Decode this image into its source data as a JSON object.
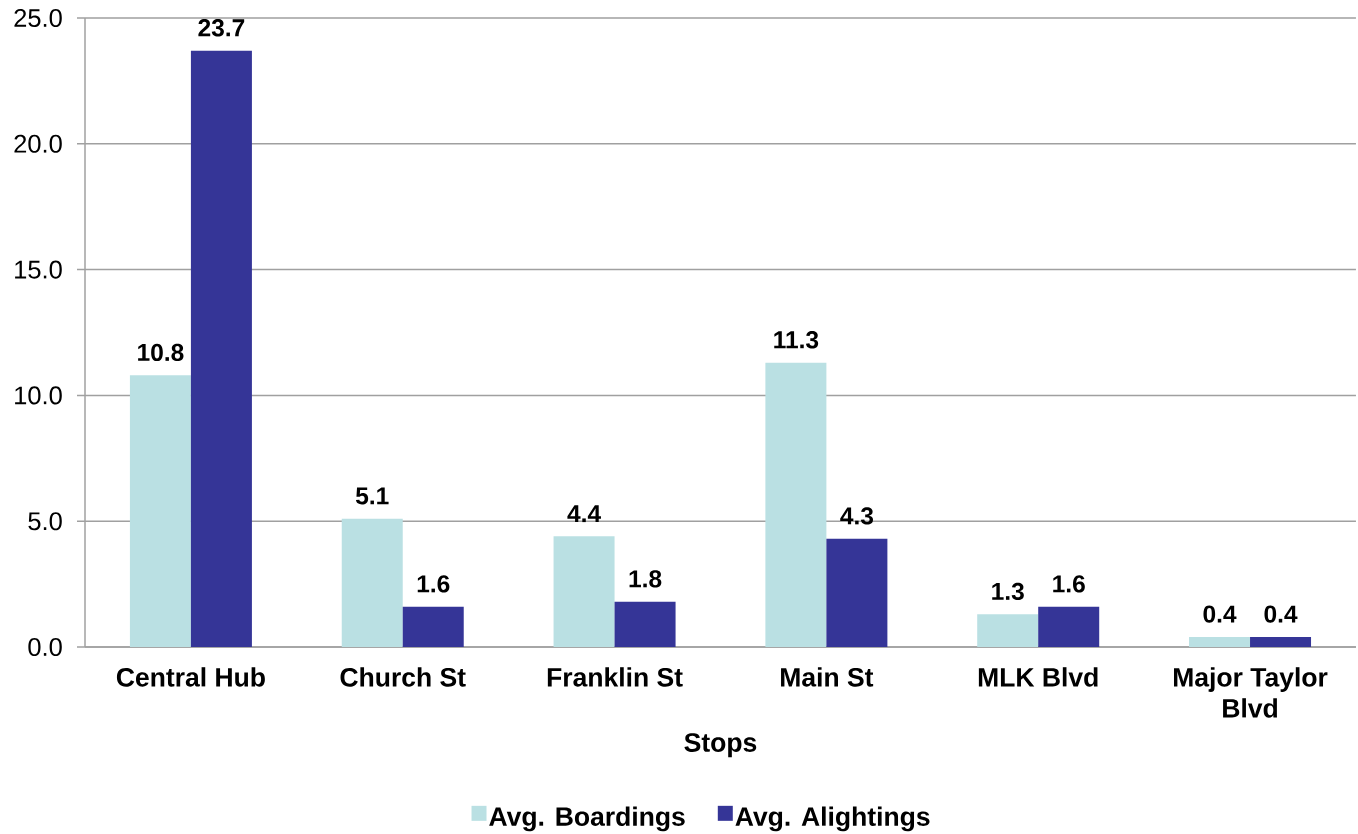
{
  "chart_data": {
    "type": "bar",
    "categories": [
      "Central Hub",
      "Church St",
      "Franklin St",
      "Main St",
      "MLK Blvd",
      "Major Taylor Blvd"
    ],
    "series": [
      {
        "name": "Avg. Boardings",
        "color": "#bae0e3",
        "values": [
          10.8,
          5.1,
          4.4,
          11.3,
          1.3,
          0.4
        ]
      },
      {
        "name": "Avg. Alightings",
        "color": "#353597",
        "values": [
          23.7,
          1.6,
          1.8,
          4.3,
          1.6,
          0.4
        ]
      }
    ],
    "xlabel": "Stops",
    "ylim": [
      0,
      25
    ],
    "yticks": [
      {
        "value": 0,
        "label": "0.0"
      },
      {
        "value": 5,
        "label": "5.0"
      },
      {
        "value": 10,
        "label": "10.0"
      },
      {
        "value": 15,
        "label": "15.0"
      },
      {
        "value": 20,
        "label": "20.0"
      },
      {
        "value": 25,
        "label": "25.0"
      }
    ],
    "grid": "y",
    "legend": "bottom",
    "data_labels": true
  }
}
